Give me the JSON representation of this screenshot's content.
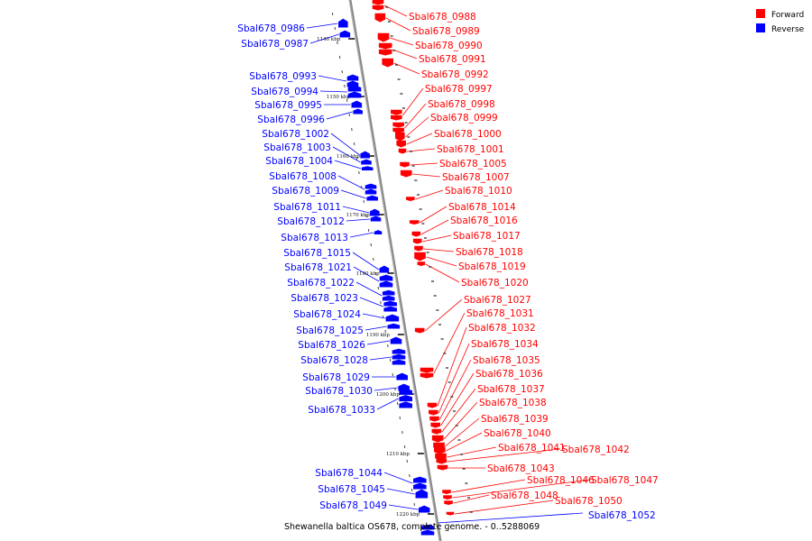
{
  "caption": "Shewanella baltica OS678, complete genome. - 0..5288069",
  "legend": [
    {
      "label": "Forward",
      "color": "#ff0000"
    },
    {
      "label": "Reverse",
      "color": "#0000ff"
    }
  ],
  "colors": {
    "forward": "#ff0000",
    "reverse": "#0000ff",
    "axis": "#888888"
  },
  "ticks": [
    "1140 kbp",
    "1150 kbp",
    "1160 kbp",
    "1170 kbp",
    "1180 kbp",
    "1190 kbp",
    "1200 kbp",
    "1210 kbp",
    "1220 kbp"
  ],
  "forward_labels": [
    "Sbal678_0988",
    "Sbal678_0989",
    "Sbal678_0990",
    "Sbal678_0991",
    "Sbal678_0992",
    "Sbal678_0997",
    "Sbal678_0998",
    "Sbal678_0999",
    "Sbal678_1000",
    "Sbal678_1001",
    "Sbal678_1005",
    "Sbal678_1007",
    "Sbal678_1010",
    "Sbal678_1014",
    "Sbal678_1016",
    "Sbal678_1017",
    "Sbal678_1018",
    "Sbal678_1019",
    "Sbal678_1020",
    "Sbal678_1027",
    "Sbal678_1031",
    "Sbal678_1032",
    "Sbal678_1034",
    "Sbal678_1035",
    "Sbal678_1036",
    "Sbal678_1037",
    "Sbal678_1038",
    "Sbal678_1039",
    "Sbal678_1040",
    "Sbal678_1041",
    "Sbal678_1042",
    "Sbal678_1043",
    "Sbal678_1046",
    "Sbal678_1047",
    "Sbal678_1048",
    "Sbal678_1050"
  ],
  "reverse_labels": [
    "Sbal678_0986",
    "Sbal678_0987",
    "Sbal678_0993",
    "Sbal678_0994",
    "Sbal678_0995",
    "Sbal678_0996",
    "Sbal678_1002",
    "Sbal678_1003",
    "Sbal678_1004",
    "Sbal678_1008",
    "Sbal678_1009",
    "Sbal678_1011",
    "Sbal678_1012",
    "Sbal678_1013",
    "Sbal678_1015",
    "Sbal678_1021",
    "Sbal678_1022",
    "Sbal678_1023",
    "Sbal678_1024",
    "Sbal678_1025",
    "Sbal678_1026",
    "Sbal678_1028",
    "Sbal678_1029",
    "Sbal678_1030",
    "Sbal678_1033",
    "Sbal678_1044",
    "Sbal678_1045",
    "Sbal678_1049",
    "Sbal678_1052"
  ]
}
